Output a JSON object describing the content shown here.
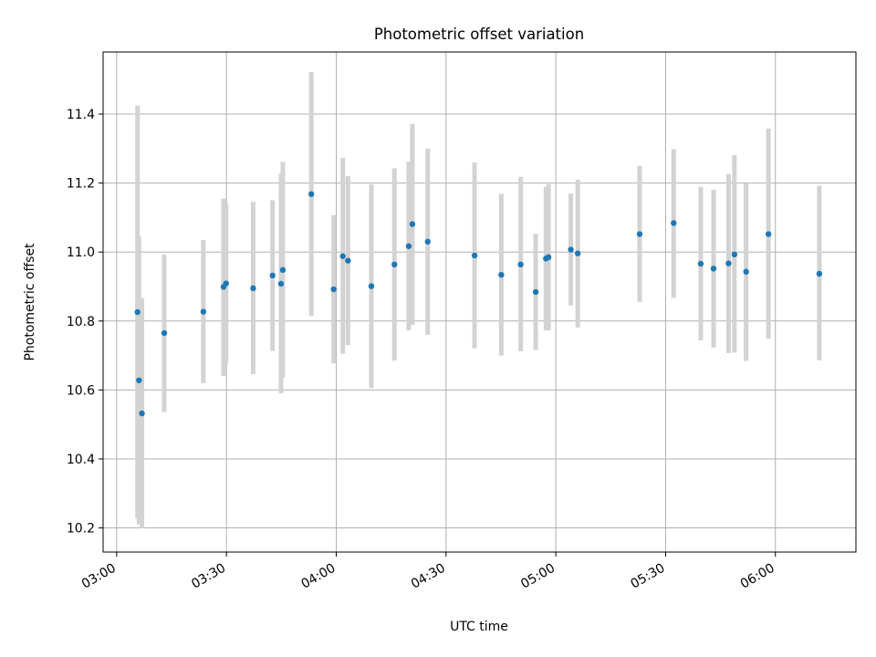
{
  "chart_data": {
    "type": "scatter",
    "title": "Photometric offset variation",
    "xlabel": "UTC time",
    "ylabel": "Photometric offset",
    "grid": true,
    "legend": "none",
    "x_unit": "minutes after 00:00 UTC",
    "xlim": [
      176.3,
      382.0
    ],
    "ylim": [
      10.13,
      11.58
    ],
    "xticks": [
      {
        "value": 180,
        "label": "03:00"
      },
      {
        "value": 210,
        "label": "03:30"
      },
      {
        "value": 240,
        "label": "04:00"
      },
      {
        "value": 270,
        "label": "04:30"
      },
      {
        "value": 300,
        "label": "05:00"
      },
      {
        "value": 330,
        "label": "05:30"
      },
      {
        "value": 360,
        "label": "06:00"
      }
    ],
    "yticks": [
      {
        "value": 10.2,
        "label": "10.2"
      },
      {
        "value": 10.4,
        "label": "10.4"
      },
      {
        "value": 10.6,
        "label": "10.6"
      },
      {
        "value": 10.8,
        "label": "10.8"
      },
      {
        "value": 11.0,
        "label": "11.0"
      },
      {
        "value": 11.2,
        "label": "11.2"
      },
      {
        "value": 11.4,
        "label": "11.4"
      }
    ],
    "colors": {
      "point": "#1f77b4",
      "errorbar": "#d3d3d3",
      "grid": "#b0b0b0"
    },
    "series": [
      {
        "name": "offset",
        "points": [
          {
            "x": 185.7,
            "y": 10.826,
            "lo": 10.228,
            "hi": 11.425
          },
          {
            "x": 186.1,
            "y": 10.628,
            "lo": 10.21,
            "hi": 11.045
          },
          {
            "x": 186.9,
            "y": 10.532,
            "lo": 10.199,
            "hi": 10.866
          },
          {
            "x": 193.0,
            "y": 10.765,
            "lo": 10.536,
            "hi": 10.993
          },
          {
            "x": 203.7,
            "y": 10.827,
            "lo": 10.62,
            "hi": 11.035
          },
          {
            "x": 209.2,
            "y": 10.899,
            "lo": 10.641,
            "hi": 11.155
          },
          {
            "x": 209.9,
            "y": 10.909,
            "lo": 10.677,
            "hi": 11.14
          },
          {
            "x": 217.3,
            "y": 10.895,
            "lo": 10.646,
            "hi": 11.145
          },
          {
            "x": 222.6,
            "y": 10.932,
            "lo": 10.713,
            "hi": 11.15
          },
          {
            "x": 224.9,
            "y": 10.908,
            "lo": 10.59,
            "hi": 11.227
          },
          {
            "x": 225.4,
            "y": 10.948,
            "lo": 10.636,
            "hi": 11.261
          },
          {
            "x": 233.2,
            "y": 11.168,
            "lo": 10.815,
            "hi": 11.522
          },
          {
            "x": 239.3,
            "y": 10.892,
            "lo": 10.677,
            "hi": 11.107
          },
          {
            "x": 241.8,
            "y": 10.988,
            "lo": 10.705,
            "hi": 11.273
          },
          {
            "x": 243.2,
            "y": 10.975,
            "lo": 10.73,
            "hi": 11.22
          },
          {
            "x": 249.6,
            "y": 10.901,
            "lo": 10.605,
            "hi": 11.196
          },
          {
            "x": 255.9,
            "y": 10.964,
            "lo": 10.685,
            "hi": 11.243
          },
          {
            "x": 259.8,
            "y": 11.017,
            "lo": 10.773,
            "hi": 11.262
          },
          {
            "x": 260.8,
            "y": 11.081,
            "lo": 10.789,
            "hi": 11.372
          },
          {
            "x": 265.0,
            "y": 11.03,
            "lo": 10.76,
            "hi": 11.3
          },
          {
            "x": 277.8,
            "y": 10.99,
            "lo": 10.721,
            "hi": 11.26
          },
          {
            "x": 285.1,
            "y": 10.934,
            "lo": 10.7,
            "hi": 11.169
          },
          {
            "x": 290.4,
            "y": 10.964,
            "lo": 10.712,
            "hi": 11.218
          },
          {
            "x": 294.5,
            "y": 10.884,
            "lo": 10.716,
            "hi": 11.053
          },
          {
            "x": 297.3,
            "y": 10.981,
            "lo": 10.773,
            "hi": 11.189
          },
          {
            "x": 298.0,
            "y": 10.985,
            "lo": 10.773,
            "hi": 11.197
          },
          {
            "x": 304.1,
            "y": 11.007,
            "lo": 10.845,
            "hi": 11.17
          },
          {
            "x": 306.0,
            "y": 10.996,
            "lo": 10.781,
            "hi": 11.21
          },
          {
            "x": 322.9,
            "y": 11.052,
            "lo": 10.855,
            "hi": 11.25
          },
          {
            "x": 332.2,
            "y": 11.084,
            "lo": 10.867,
            "hi": 11.298
          },
          {
            "x": 339.6,
            "y": 10.966,
            "lo": 10.744,
            "hi": 11.189
          },
          {
            "x": 343.1,
            "y": 10.952,
            "lo": 10.723,
            "hi": 11.18
          },
          {
            "x": 347.2,
            "y": 10.967,
            "lo": 10.707,
            "hi": 11.226
          },
          {
            "x": 348.8,
            "y": 10.993,
            "lo": 10.708,
            "hi": 11.281
          },
          {
            "x": 352.0,
            "y": 10.943,
            "lo": 10.684,
            "hi": 11.199
          },
          {
            "x": 358.1,
            "y": 11.052,
            "lo": 10.749,
            "hi": 11.358
          },
          {
            "x": 372.0,
            "y": 10.937,
            "lo": 10.686,
            "hi": 11.192
          }
        ]
      }
    ]
  }
}
